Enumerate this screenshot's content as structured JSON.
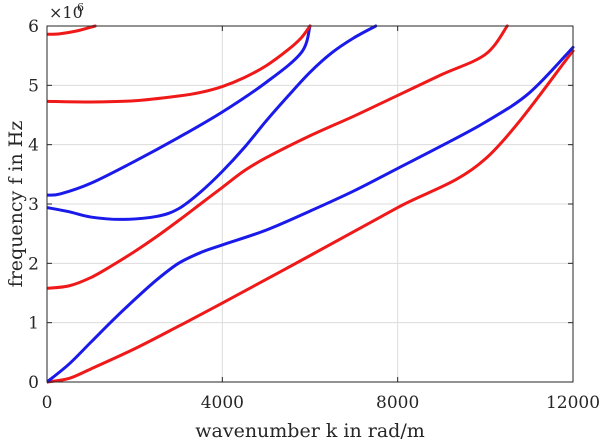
{
  "chart_data": {
    "type": "line",
    "title": "",
    "xlabel": "wavenumber k in rad/m",
    "ylabel": "frequency f in Hz",
    "y_multiplier_label": "×10",
    "y_multiplier_exponent": "6",
    "xlim": [
      0,
      12000
    ],
    "ylim": [
      0,
      6
    ],
    "x_ticks": [
      0,
      4000,
      8000,
      12000
    ],
    "x_tick_labels": [
      "0",
      "4000",
      "8000",
      "12000"
    ],
    "y_ticks": [
      0,
      1,
      2,
      3,
      4,
      5,
      6
    ],
    "y_tick_labels": [
      "0",
      "1",
      "2",
      "3",
      "4",
      "5",
      "6"
    ],
    "grid": true,
    "colors": {
      "red": "#f01919",
      "blue": "#1a1aeb"
    },
    "series": [
      {
        "color": "red",
        "points": [
          [
            0,
            0
          ],
          [
            500,
            0.06
          ],
          [
            1000,
            0.22
          ],
          [
            2000,
            0.56
          ],
          [
            3000,
            0.94
          ],
          [
            4000,
            1.33
          ],
          [
            6000,
            2.13
          ],
          [
            8000,
            2.94
          ],
          [
            10000,
            3.76
          ],
          [
            12000,
            5.58
          ]
        ]
      },
      {
        "color": "blue",
        "points": [
          [
            0,
            0
          ],
          [
            500,
            0.3
          ],
          [
            1000,
            0.67
          ],
          [
            1500,
            1.04
          ],
          [
            2000,
            1.39
          ],
          [
            2500,
            1.72
          ],
          [
            3000,
            2.0
          ],
          [
            3500,
            2.18
          ],
          [
            4000,
            2.31
          ],
          [
            5000,
            2.56
          ],
          [
            6000,
            2.88
          ],
          [
            7000,
            3.22
          ],
          [
            8000,
            3.6
          ],
          [
            9000,
            3.98
          ],
          [
            10000,
            4.38
          ],
          [
            11000,
            4.87
          ],
          [
            12000,
            5.64
          ]
        ]
      },
      {
        "color": "red",
        "points": [
          [
            0,
            1.58
          ],
          [
            500,
            1.62
          ],
          [
            1000,
            1.76
          ],
          [
            1500,
            1.97
          ],
          [
            2000,
            2.2
          ],
          [
            2500,
            2.45
          ],
          [
            3000,
            2.72
          ],
          [
            3500,
            3.0
          ],
          [
            4000,
            3.28
          ],
          [
            4500,
            3.56
          ],
          [
            5000,
            3.78
          ],
          [
            6000,
            4.15
          ],
          [
            7000,
            4.48
          ],
          [
            8000,
            4.83
          ],
          [
            9000,
            5.18
          ],
          [
            10000,
            5.52
          ],
          [
            10500,
            6.0
          ]
        ]
      },
      {
        "color": "blue",
        "points": [
          [
            0,
            2.94
          ],
          [
            500,
            2.87
          ],
          [
            1000,
            2.78
          ],
          [
            1700,
            2.74
          ],
          [
            2500,
            2.79
          ],
          [
            3000,
            2.92
          ],
          [
            3500,
            3.2
          ],
          [
            4000,
            3.55
          ],
          [
            4500,
            3.95
          ],
          [
            5000,
            4.4
          ],
          [
            5500,
            4.82
          ],
          [
            6000,
            5.22
          ],
          [
            6500,
            5.55
          ],
          [
            7000,
            5.8
          ],
          [
            7500,
            6.0
          ]
        ]
      },
      {
        "color": "blue",
        "points": [
          [
            0,
            3.15
          ],
          [
            300,
            3.17
          ],
          [
            1000,
            3.35
          ],
          [
            2000,
            3.72
          ],
          [
            3000,
            4.12
          ],
          [
            4000,
            4.55
          ],
          [
            5000,
            5.05
          ],
          [
            5800,
            5.55
          ],
          [
            6000,
            6.0
          ]
        ]
      },
      {
        "color": "red",
        "points": [
          [
            0,
            4.73
          ],
          [
            1000,
            4.72
          ],
          [
            2000,
            4.74
          ],
          [
            3000,
            4.82
          ],
          [
            3500,
            4.88
          ],
          [
            4000,
            4.98
          ],
          [
            4500,
            5.13
          ],
          [
            5000,
            5.33
          ],
          [
            5500,
            5.6
          ],
          [
            5800,
            5.8
          ],
          [
            6000,
            6.0
          ]
        ]
      },
      {
        "color": "red",
        "points": [
          [
            0,
            5.86
          ],
          [
            300,
            5.87
          ],
          [
            700,
            5.92
          ],
          [
            1100,
            6.0
          ]
        ]
      }
    ]
  }
}
